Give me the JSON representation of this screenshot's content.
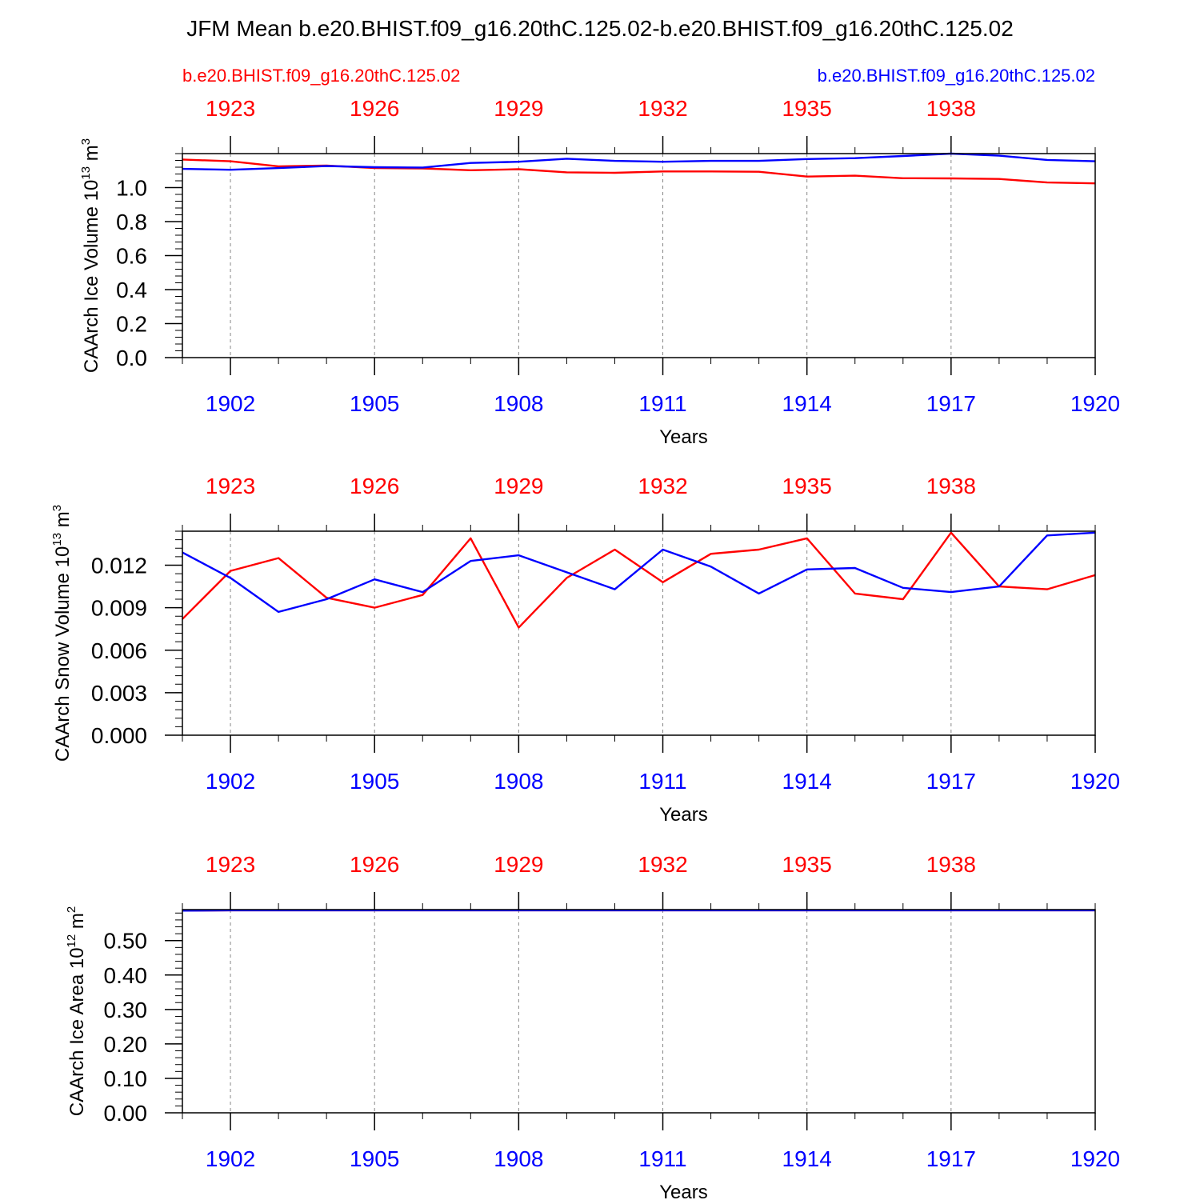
{
  "title": "JFM Mean b.e20.BHIST.f09_g16.20thC.125.02-b.e20.BHIST.f09_g16.20thC.125.02",
  "legend": {
    "left": "b.e20.BHIST.f09_g16.20thC.125.02",
    "right": "b.e20.BHIST.f09_g16.20thC.125.02",
    "left_color": "#ff0000",
    "right_color": "#0000ff"
  },
  "colors": {
    "red": "#ff0000",
    "blue": "#0000ff",
    "axis": "#000000",
    "grid": "#888888"
  },
  "chart_data": [
    {
      "type": "line",
      "ylabel": "CAArch Ice Volume 10",
      "yunit_exp": "13",
      "yunit_tail": " m",
      "yunit_pow": "3",
      "xlabel": "Years",
      "xlim": [
        1901,
        1920
      ],
      "ylim": [
        0,
        1.2
      ],
      "yticks": [
        0.0,
        0.2,
        0.4,
        0.6,
        0.8,
        1.0
      ],
      "ytick_labels": [
        "0.0",
        "0.2",
        "0.4",
        "0.6",
        "0.8",
        "1.0"
      ],
      "yminor_step": 0.04,
      "bottom_ticks": [
        1902,
        1905,
        1908,
        1911,
        1914,
        1917,
        1920
      ],
      "bottom_tick_labels": [
        "1902",
        "1905",
        "1908",
        "1911",
        "1914",
        "1917",
        "1920"
      ],
      "top_ticks": [
        1923,
        1926,
        1929,
        1932,
        1935,
        1938
      ],
      "top_tick_labels": [
        "1923",
        "1926",
        "1929",
        "1932",
        "1935",
        "1938"
      ],
      "top_offset": 21,
      "x": [
        1901,
        1902,
        1903,
        1904,
        1905,
        1906,
        1907,
        1908,
        1909,
        1910,
        1911,
        1912,
        1913,
        1914,
        1915,
        1916,
        1917,
        1918,
        1919,
        1920
      ],
      "series": [
        {
          "name": "b.e20.BHIST.f09_g16.20thC.125.02 (red)",
          "color": "#ff0000",
          "values": [
            1.165,
            1.155,
            1.125,
            1.13,
            1.115,
            1.113,
            1.102,
            1.108,
            1.09,
            1.087,
            1.095,
            1.095,
            1.093,
            1.065,
            1.07,
            1.055,
            1.054,
            1.051,
            1.03,
            1.025
          ]
        },
        {
          "name": "b.e20.BHIST.f09_g16.20thC.125.02 (blue)",
          "color": "#0000ff",
          "values": [
            1.11,
            1.105,
            1.115,
            1.127,
            1.12,
            1.118,
            1.145,
            1.152,
            1.17,
            1.157,
            1.152,
            1.157,
            1.157,
            1.168,
            1.173,
            1.186,
            1.2,
            1.188,
            1.163,
            1.155
          ]
        }
      ]
    },
    {
      "type": "line",
      "ylabel": "CAArch Snow Volume 10",
      "yunit_exp": "13",
      "yunit_tail": " m",
      "yunit_pow": "3",
      "xlabel": "Years",
      "xlim": [
        1901,
        1920
      ],
      "ylim": [
        0,
        0.0144
      ],
      "yticks": [
        0.0,
        0.003,
        0.006,
        0.009,
        0.012
      ],
      "ytick_labels": [
        "0.000",
        "0.003",
        "0.006",
        "0.009",
        "0.012"
      ],
      "yminor_step": 0.0006,
      "bottom_ticks": [
        1902,
        1905,
        1908,
        1911,
        1914,
        1917,
        1920
      ],
      "bottom_tick_labels": [
        "1902",
        "1905",
        "1908",
        "1911",
        "1914",
        "1917",
        "1920"
      ],
      "top_ticks": [
        1923,
        1926,
        1929,
        1932,
        1935,
        1938
      ],
      "top_tick_labels": [
        "1923",
        "1926",
        "1929",
        "1932",
        "1935",
        "1938"
      ],
      "top_offset": 21,
      "x": [
        1901,
        1902,
        1903,
        1904,
        1905,
        1906,
        1907,
        1908,
        1909,
        1910,
        1911,
        1912,
        1913,
        1914,
        1915,
        1916,
        1917,
        1918,
        1919,
        1920
      ],
      "series": [
        {
          "name": "b.e20.BHIST.f09_g16.20thC.125.02 (red)",
          "color": "#ff0000",
          "values": [
            0.0082,
            0.0116,
            0.0125,
            0.0097,
            0.009,
            0.0099,
            0.0139,
            0.0076,
            0.0111,
            0.0131,
            0.0108,
            0.0128,
            0.0131,
            0.0139,
            0.01,
            0.0096,
            0.0143,
            0.0105,
            0.0103,
            0.0113
          ]
        },
        {
          "name": "b.e20.BHIST.f09_g16.20thC.125.02 (blue)",
          "color": "#0000ff",
          "values": [
            0.0129,
            0.0111,
            0.0087,
            0.0096,
            0.011,
            0.0101,
            0.0123,
            0.0127,
            0.0115,
            0.0103,
            0.0131,
            0.0119,
            0.01,
            0.0117,
            0.0118,
            0.0104,
            0.0101,
            0.0105,
            0.0141,
            0.0143
          ]
        }
      ]
    },
    {
      "type": "line",
      "ylabel": "CAArch Ice Area 10",
      "yunit_exp": "12",
      "yunit_tail": " m",
      "yunit_pow": "2",
      "xlabel": "Years",
      "xlim": [
        1901,
        1920
      ],
      "ylim": [
        0,
        0.59
      ],
      "yticks": [
        0.0,
        0.1,
        0.2,
        0.3,
        0.4,
        0.5
      ],
      "ytick_labels": [
        "0.00",
        "0.10",
        "0.20",
        "0.30",
        "0.40",
        "0.50"
      ],
      "yminor_step": 0.02,
      "bottom_ticks": [
        1902,
        1905,
        1908,
        1911,
        1914,
        1917,
        1920
      ],
      "bottom_tick_labels": [
        "1902",
        "1905",
        "1908",
        "1911",
        "1914",
        "1917",
        "1920"
      ],
      "top_ticks": [
        1923,
        1926,
        1929,
        1932,
        1935,
        1938
      ],
      "top_tick_labels": [
        "1923",
        "1926",
        "1929",
        "1932",
        "1935",
        "1938"
      ],
      "top_offset": 21,
      "x": [
        1901,
        1902,
        1903,
        1904,
        1905,
        1906,
        1907,
        1908,
        1909,
        1910,
        1911,
        1912,
        1913,
        1914,
        1915,
        1916,
        1917,
        1918,
        1919,
        1920
      ],
      "series": [
        {
          "name": "b.e20.BHIST.f09_g16.20thC.125.02 (red)",
          "color": "#ff0000",
          "values": [
            0.587,
            0.588,
            0.588,
            0.588,
            0.588,
            0.588,
            0.588,
            0.588,
            0.588,
            0.588,
            0.588,
            0.588,
            0.588,
            0.588,
            0.588,
            0.588,
            0.588,
            0.588,
            0.588,
            0.588
          ]
        },
        {
          "name": "b.e20.BHIST.f09_g16.20thC.125.02 (blue)",
          "color": "#0000ff",
          "values": [
            0.587,
            0.588,
            0.588,
            0.588,
            0.588,
            0.588,
            0.588,
            0.588,
            0.588,
            0.588,
            0.588,
            0.588,
            0.588,
            0.588,
            0.588,
            0.588,
            0.588,
            0.588,
            0.588,
            0.588
          ]
        }
      ]
    }
  ]
}
